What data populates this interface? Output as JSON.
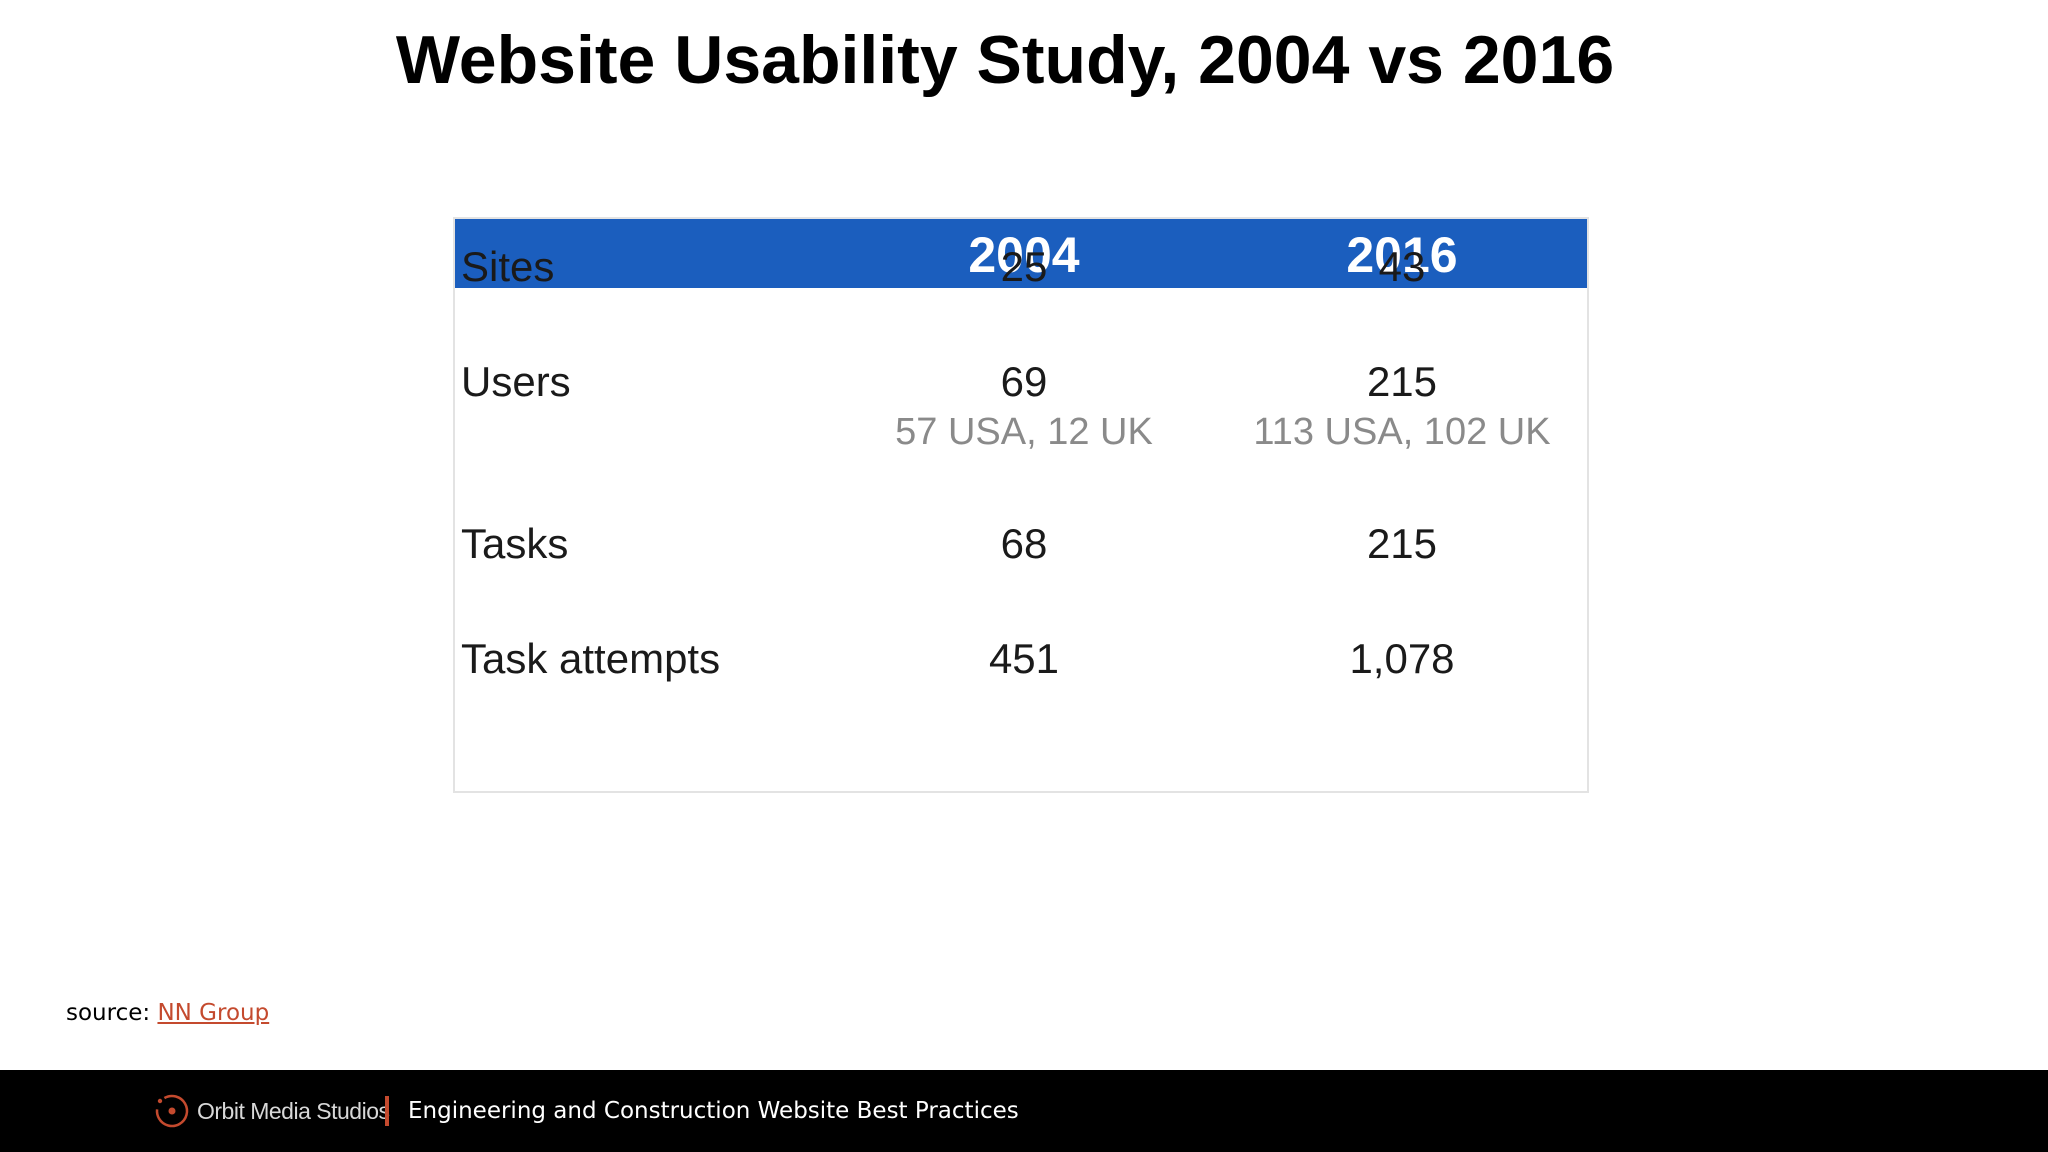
{
  "slide": {
    "title": "Website Usability Study, 2004 vs 2016"
  },
  "table": {
    "columns": [
      "2004",
      "2016"
    ],
    "rows": [
      {
        "label": "Sites",
        "values": [
          "25",
          "43"
        ]
      },
      {
        "label": "Users",
        "values": [
          "69",
          "215"
        ],
        "notes": [
          "57 USA, 12 UK",
          "113 USA, 102 UK"
        ]
      },
      {
        "label": "Tasks",
        "values": [
          "68",
          "215"
        ]
      },
      {
        "label": "Task attempts",
        "values": [
          "451",
          "1,078"
        ]
      }
    ],
    "header_color": "#1b5ebe"
  },
  "source": {
    "prefix": "source: ",
    "link_text": "NN Group",
    "link_color": "#c44a2e"
  },
  "footer": {
    "brand": "Orbit Media Studios",
    "text": "Engineering and Construction Website Best Practices",
    "logo_icon": "orbit-logo-icon",
    "accent_color": "#c44a2e"
  }
}
